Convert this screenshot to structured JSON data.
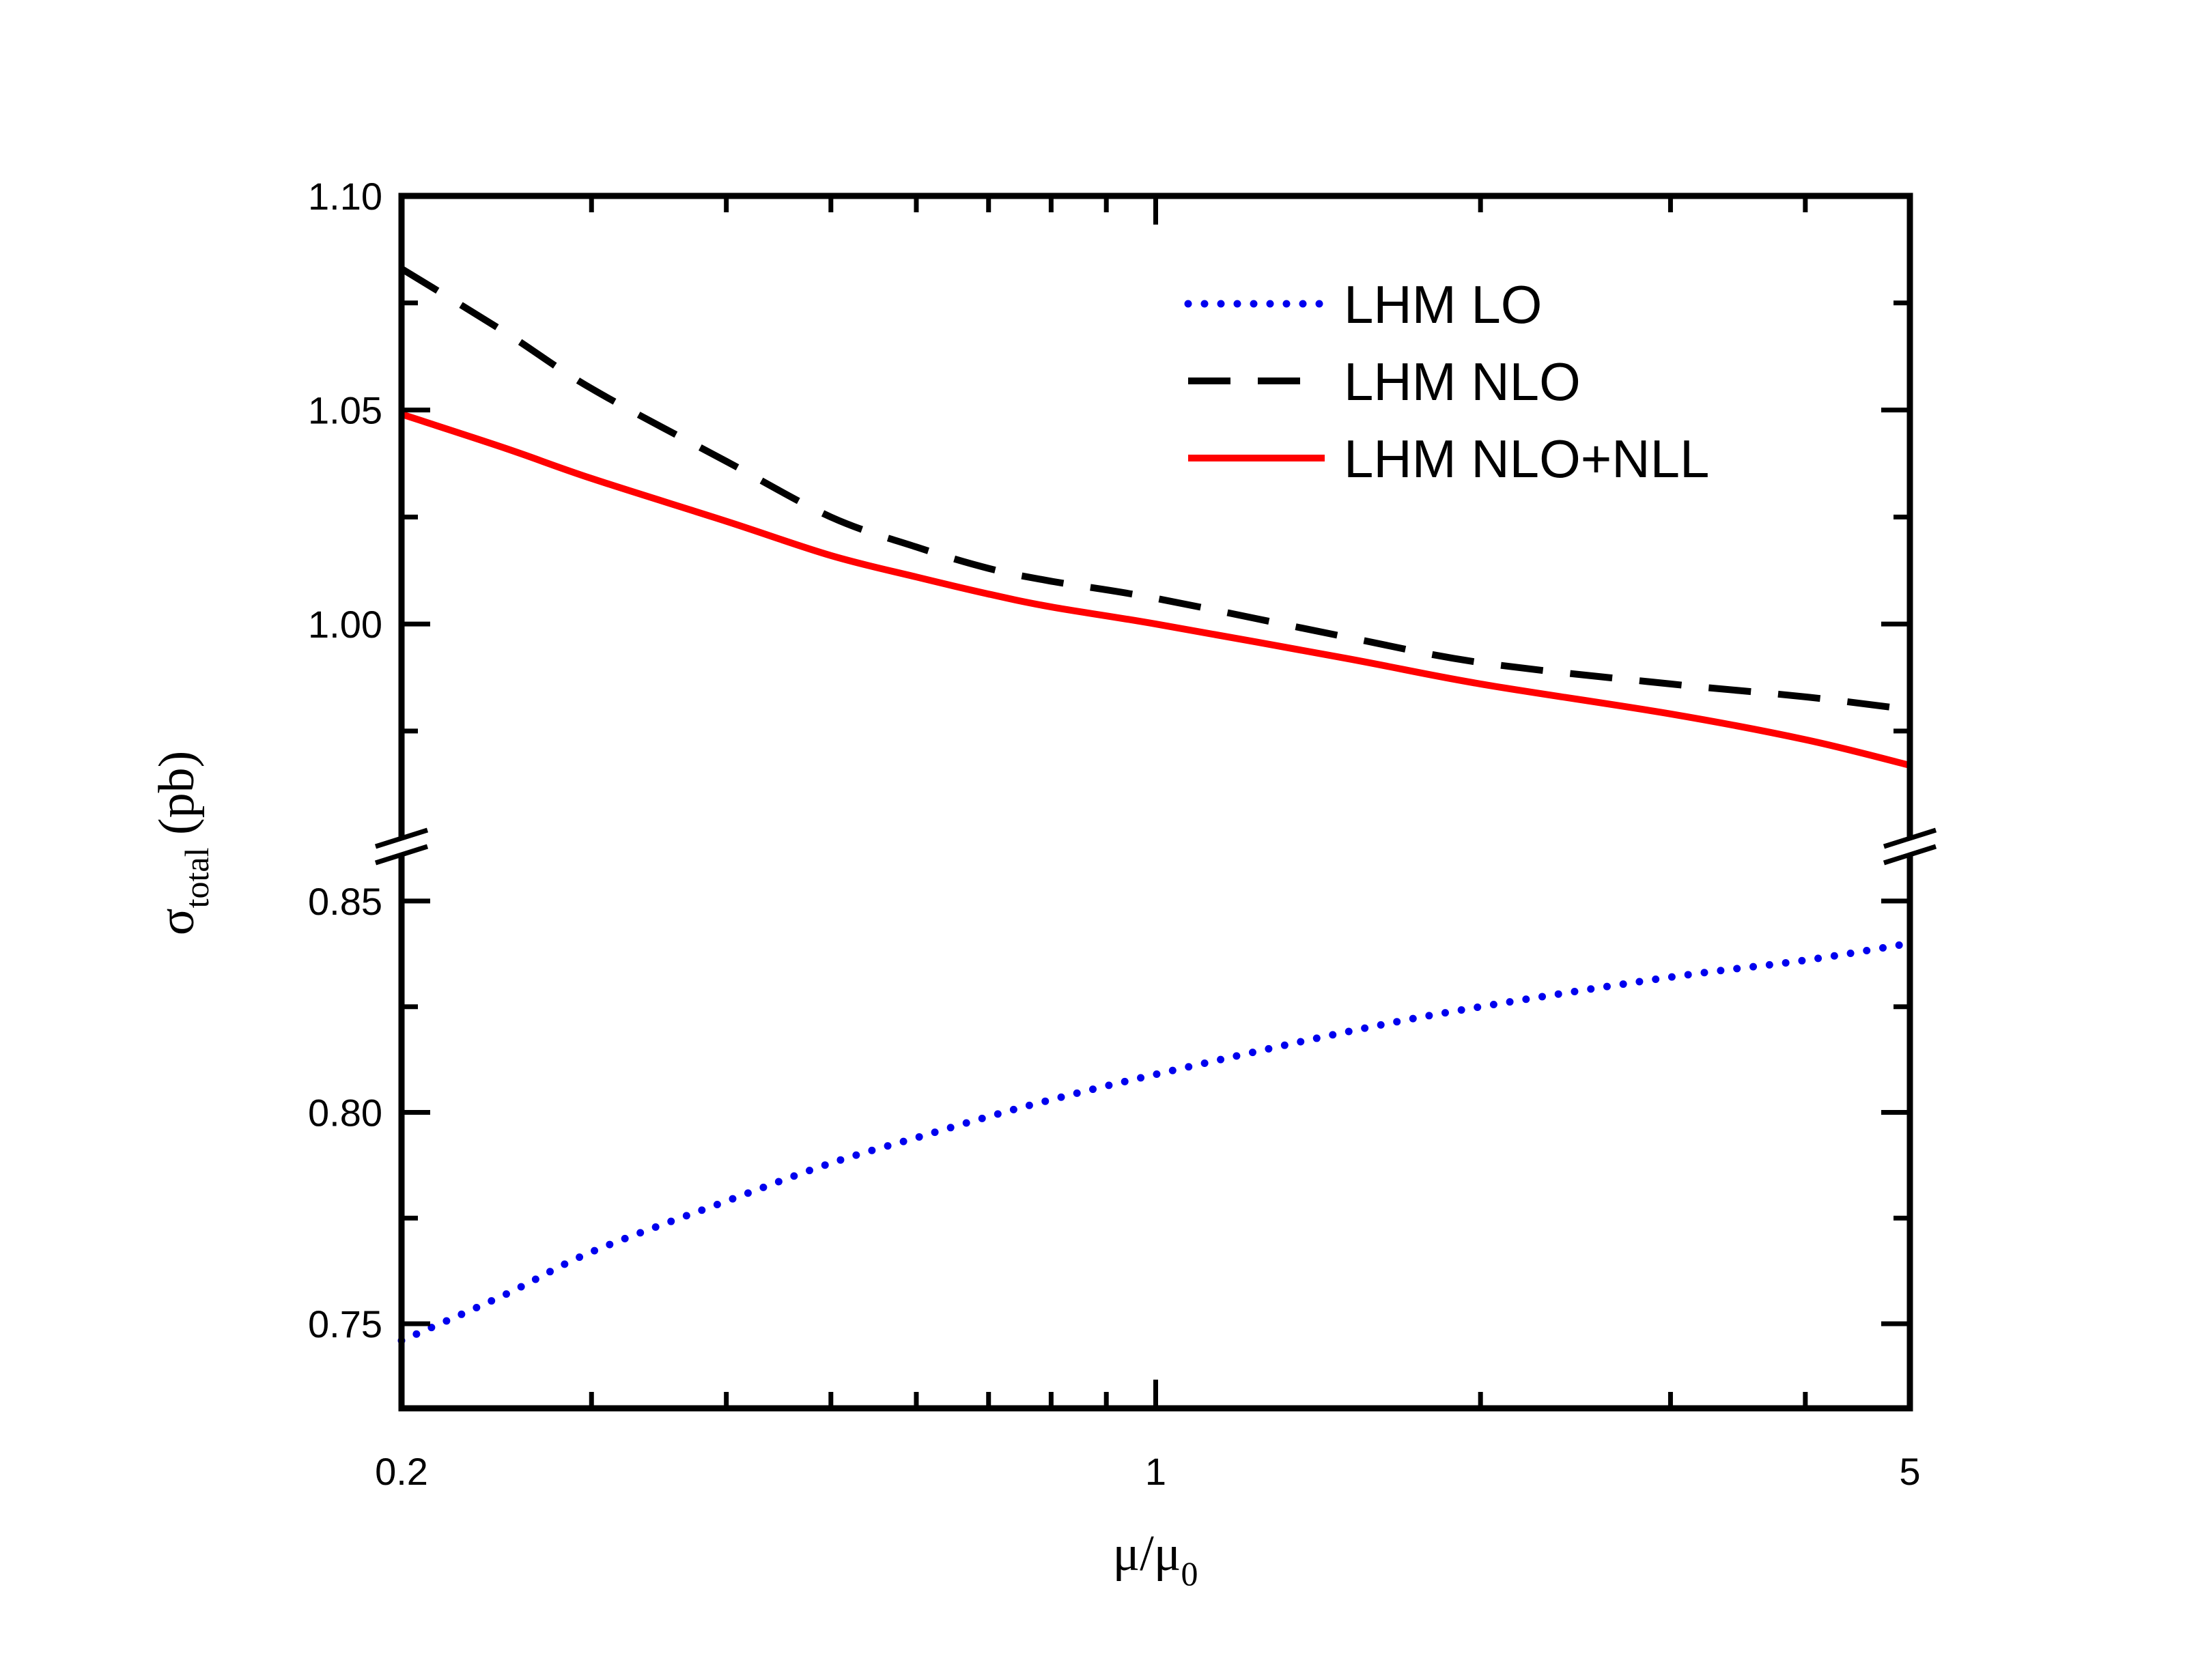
{
  "chart_data": {
    "type": "line",
    "title": "",
    "x_scale": "log",
    "xlim": [
      0.2,
      5
    ],
    "x_ticks": [
      {
        "value": 0.2,
        "label": "0.2"
      },
      {
        "value": 1,
        "label": "1"
      },
      {
        "value": 5,
        "label": "5"
      }
    ],
    "x_minor_ticks": [
      0.3,
      0.4,
      0.5,
      0.6,
      0.7,
      0.8,
      0.9,
      2,
      3,
      4
    ],
    "xlabel": {
      "main": "μ/μ",
      "sub": "0"
    },
    "ylabel": {
      "main": "σ",
      "sub": "total",
      "unit": " (pb)"
    },
    "y_axis_broken": true,
    "y_segments": [
      {
        "name": "lower",
        "ylim": [
          0.73,
          0.86
        ],
        "ticks": [
          {
            "value": 0.75,
            "label": "0.75"
          },
          {
            "value": 0.8,
            "label": "0.80"
          },
          {
            "value": 0.85,
            "label": "0.85"
          }
        ],
        "minor_ticks": [
          0.775,
          0.825
        ]
      },
      {
        "name": "upper",
        "ylim": [
          0.96,
          1.1
        ],
        "ticks": [
          {
            "value": 1.0,
            "label": "1.00"
          },
          {
            "value": 1.05,
            "label": "1.05"
          },
          {
            "value": 1.1,
            "label": "1.10"
          }
        ],
        "minor_ticks": [
          0.975,
          1.025,
          1.075
        ]
      }
    ],
    "legend_position": "top-right",
    "series": [
      {
        "name": "LHM LO",
        "style": "dotted",
        "color": "#0000ee",
        "segment": "lower",
        "x": [
          0.2,
          0.25,
          0.3,
          0.4,
          0.5,
          0.6,
          0.7,
          0.8,
          1,
          1.5,
          2,
          3,
          4,
          5
        ],
        "y": [
          0.746,
          0.757,
          0.767,
          0.779,
          0.788,
          0.794,
          0.799,
          0.803,
          0.809,
          0.819,
          0.825,
          0.832,
          0.836,
          0.84
        ]
      },
      {
        "name": "LHM NLO",
        "style": "dashed",
        "color": "#000000",
        "segment": "upper",
        "x": [
          0.2,
          0.25,
          0.3,
          0.4,
          0.5,
          0.6,
          0.7,
          0.8,
          1,
          1.5,
          2,
          3,
          4,
          5
        ],
        "y": [
          1.083,
          1.068,
          1.055,
          1.038,
          1.025,
          1.018,
          1.013,
          1.01,
          1.006,
          0.997,
          0.991,
          0.986,
          0.983,
          0.98
        ]
      },
      {
        "name": "LHM NLO+NLL",
        "style": "solid",
        "color": "#ff0000",
        "segment": "upper",
        "x": [
          0.2,
          0.25,
          0.3,
          0.4,
          0.5,
          0.6,
          0.7,
          0.8,
          1,
          1.5,
          2,
          3,
          4,
          5
        ],
        "y": [
          1.049,
          1.041,
          1.034,
          1.024,
          1.016,
          1.011,
          1.007,
          1.004,
          1.0,
          0.992,
          0.986,
          0.979,
          0.973,
          0.967
        ]
      }
    ]
  }
}
